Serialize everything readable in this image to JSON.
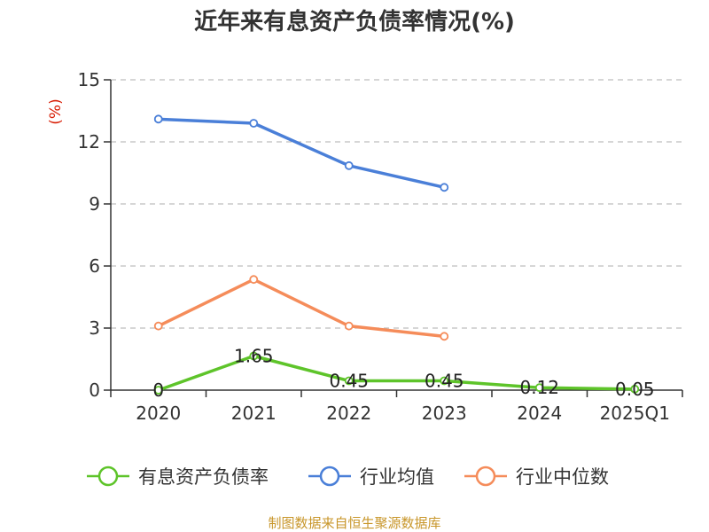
{
  "chart_data": {
    "type": "line",
    "title": "近年来有息资产负债率情况(%)",
    "ylabel": "(%)",
    "categories": [
      "2020",
      "2021",
      "2022",
      "2023",
      "2024",
      "2025Q1"
    ],
    "ylim": [
      0,
      15
    ],
    "yticks": [
      "0",
      "3",
      "6",
      "9",
      "12",
      "15"
    ],
    "grid": true,
    "legend_position": "bottom",
    "series": [
      {
        "name": "有息资产负债率",
        "color": "#5ec42a",
        "values": [
          0,
          1.65,
          0.45,
          0.45,
          0.12,
          0.05
        ],
        "labels": [
          "0",
          "1.65",
          "0.45",
          "0.45",
          "0.12",
          "0.05"
        ]
      },
      {
        "name": "行业均值",
        "color": "#4a7fd8",
        "values": [
          13.1,
          12.9,
          10.85,
          9.8,
          null,
          null
        ]
      },
      {
        "name": "行业中位数",
        "color": "#f58c5a",
        "values": [
          3.1,
          5.35,
          3.1,
          2.6,
          null,
          null
        ]
      }
    ],
    "unit_color": "#d81e06",
    "source": "制图数据来自恒生聚源数据库",
    "source_color": "#c8962a"
  }
}
